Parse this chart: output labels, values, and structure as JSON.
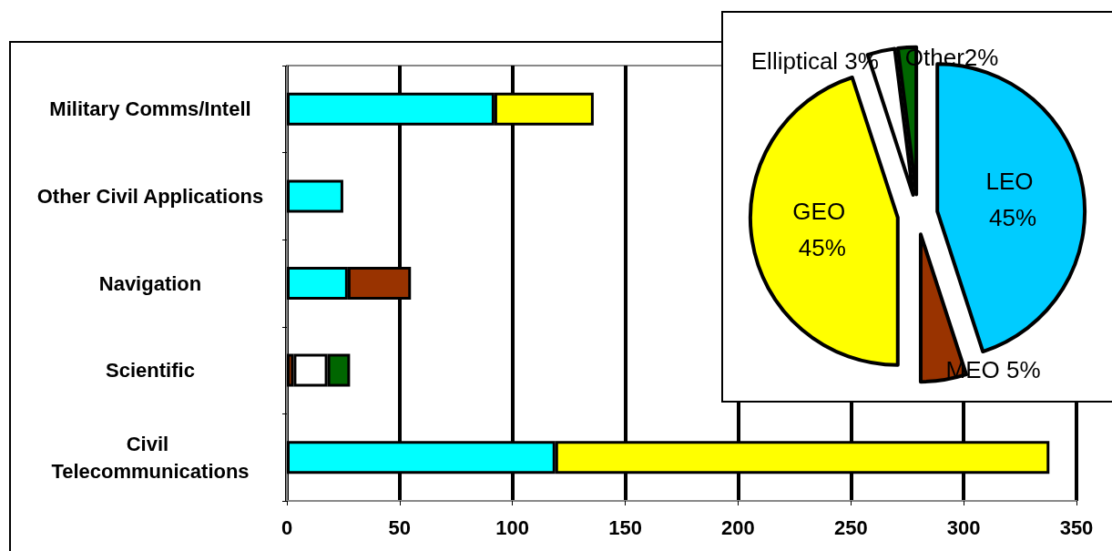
{
  "chart_data": [
    {
      "type": "bar",
      "orientation": "horizontal",
      "stacked": true,
      "grid": "x",
      "legend": false,
      "categories": [
        "Military Comms/Intell",
        "Other Civil Applications",
        "Navigation",
        "Scientific",
        "Civil Telecommunications"
      ],
      "series": [
        {
          "color": "#00ffff",
          "values": [
            92,
            25,
            27,
            null,
            119
          ]
        },
        {
          "color": "#ffff00",
          "values": [
            44,
            null,
            null,
            null,
            219
          ]
        },
        {
          "color": "#993300",
          "values": [
            null,
            null,
            28,
            3,
            null
          ]
        },
        {
          "color": "#ffffff",
          "values": [
            null,
            null,
            null,
            15,
            null
          ]
        },
        {
          "color": "#006600",
          "values": [
            null,
            null,
            null,
            10,
            null
          ]
        }
      ],
      "xlim": [
        0,
        350
      ],
      "xticks": [
        0,
        50,
        100,
        150,
        200,
        250,
        300,
        350
      ]
    },
    {
      "type": "pie",
      "legend": false,
      "categories": [
        "LEO 45%",
        "MEO 5%",
        "GEO 45%",
        "Elliptical 3%",
        "Other2%"
      ],
      "values": [
        45,
        5,
        45,
        3,
        2
      ],
      "colors": [
        "#00ccff",
        "#993300",
        "#ffff00",
        "#ffffff",
        "#006600"
      ]
    }
  ]
}
